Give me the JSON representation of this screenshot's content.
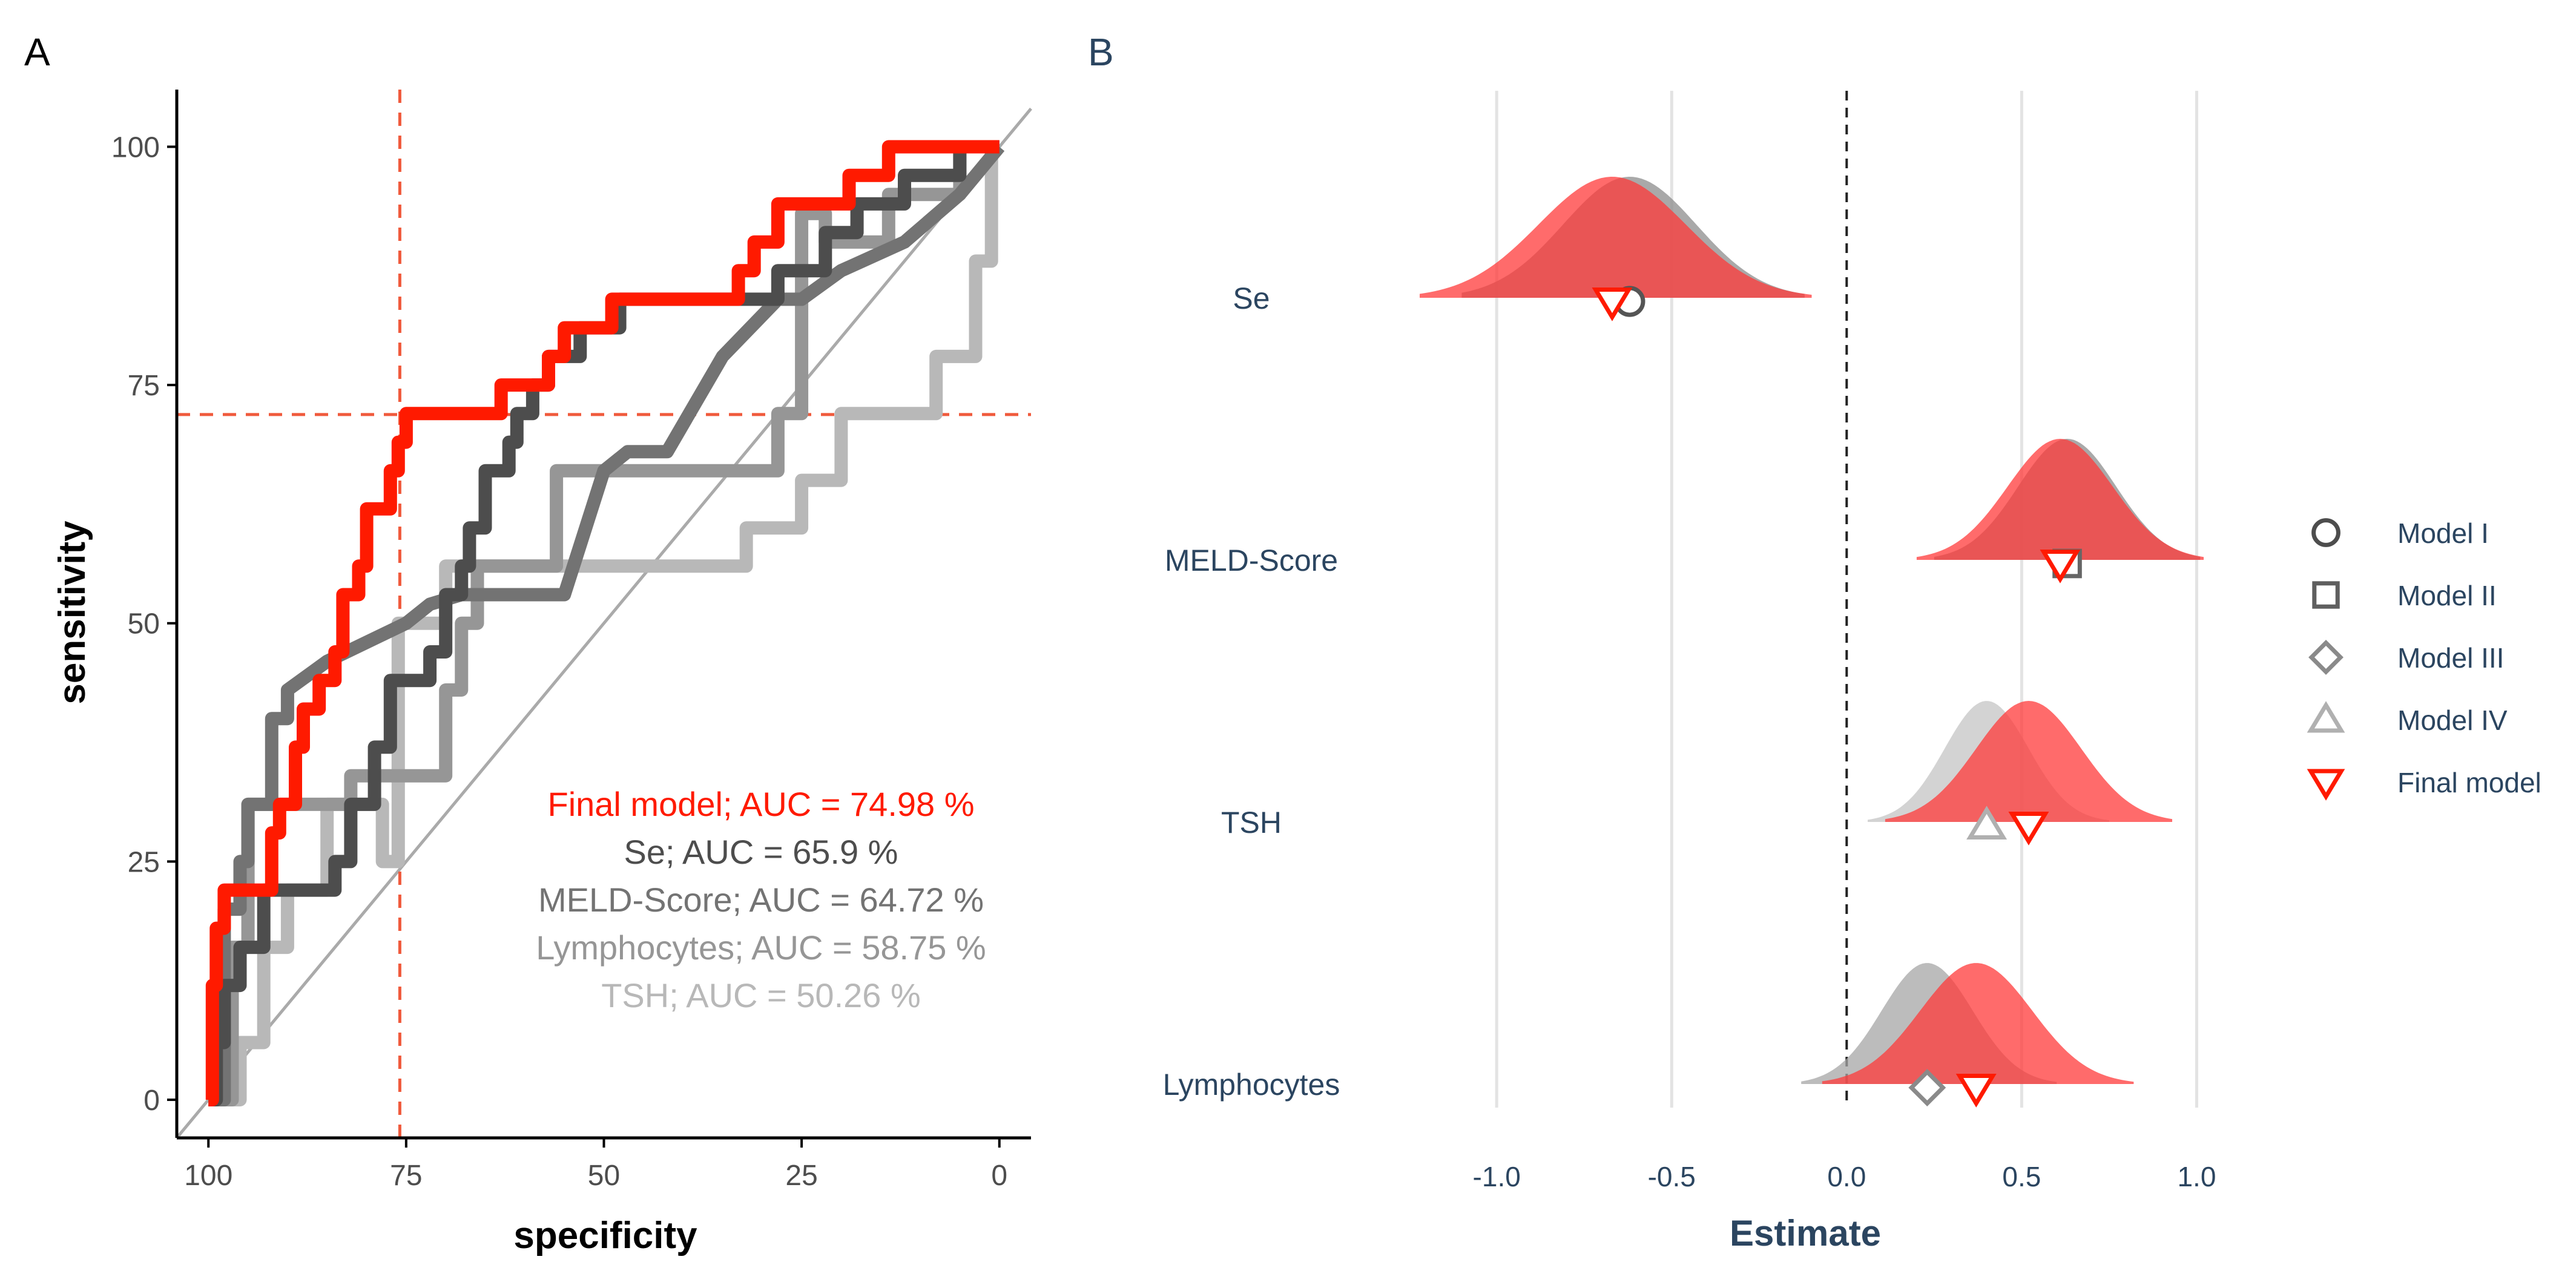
{
  "panel_labels": {
    "a": "A",
    "b": "B"
  },
  "colors": {
    "final": "#ff1a00",
    "se": "#4d4d4d",
    "meld": "#737373",
    "lymph": "#969696",
    "tsh": "#b8b8b8",
    "cutoff": "#f05a3c",
    "axis_text_b": "#2b4560",
    "grid": "#e3e3e3"
  },
  "chart_data": [
    {
      "type": "line",
      "panel": "A",
      "xlabel": "specificity",
      "ylabel": "sensitivity",
      "xlim": [
        104,
        -4
      ],
      "ylim": [
        -4,
        106
      ],
      "x_ticks": [
        "100",
        "75",
        "50",
        "25",
        "0"
      ],
      "y_ticks": [
        "0",
        "25",
        "50",
        "75",
        "100"
      ],
      "reference_line": {
        "from": [
          100,
          0
        ],
        "to": [
          0,
          100
        ]
      },
      "cutoff": {
        "specificity": 75.8,
        "sensitivity": 71.9
      },
      "legend": [
        {
          "key": "final",
          "text": "Final model; AUC = 74.98 %"
        },
        {
          "key": "se",
          "text": "Se; AUC = 65.9 %"
        },
        {
          "key": "meld",
          "text": "MELD-Score; AUC = 64.72 %"
        },
        {
          "key": "lymph",
          "text": "Lymphocytes; AUC = 58.75 %"
        },
        {
          "key": "tsh",
          "text": "TSH; AUC = 50.26 %"
        }
      ],
      "series": [
        {
          "key": "tsh",
          "name": "TSH; AUC = 50.26 %",
          "points": [
            [
              100,
              0
            ],
            [
              96,
              0
            ],
            [
              96,
              6
            ],
            [
              93,
              6
            ],
            [
              93,
              16
            ],
            [
              90,
              16
            ],
            [
              90,
              22
            ],
            [
              85,
              22
            ],
            [
              85,
              31
            ],
            [
              78,
              31
            ],
            [
              78,
              25
            ],
            [
              76,
              25
            ],
            [
              76,
              50
            ],
            [
              70,
              50
            ],
            [
              70,
              56
            ],
            [
              32,
              56
            ],
            [
              32,
              60
            ],
            [
              25,
              60
            ],
            [
              25,
              65
            ],
            [
              20,
              65
            ],
            [
              20,
              72
            ],
            [
              8,
              72
            ],
            [
              8,
              78
            ],
            [
              3,
              78
            ],
            [
              3,
              88
            ],
            [
              1,
              88
            ],
            [
              1,
              100
            ],
            [
              0,
              100
            ]
          ]
        },
        {
          "key": "lymph",
          "name": "Lymphocytes; AUC = 58.75 %",
          "points": [
            [
              100,
              0
            ],
            [
              97,
              0
            ],
            [
              97,
              16
            ],
            [
              95,
              16
            ],
            [
              95,
              31
            ],
            [
              82,
              31
            ],
            [
              82,
              34
            ],
            [
              70,
              34
            ],
            [
              70,
              43
            ],
            [
              68,
              43
            ],
            [
              68,
              50
            ],
            [
              66,
              50
            ],
            [
              66,
              56
            ],
            [
              56,
              56
            ],
            [
              56,
              66
            ],
            [
              28,
              66
            ],
            [
              28,
              72
            ],
            [
              25,
              72
            ],
            [
              25,
              93
            ],
            [
              22,
              93
            ],
            [
              22,
              90
            ],
            [
              14,
              90
            ],
            [
              14,
              95
            ],
            [
              5,
              95
            ],
            [
              5,
              100
            ],
            [
              0,
              100
            ]
          ]
        },
        {
          "key": "meld",
          "name": "MELD-Score; AUC = 64.72 %",
          "points": [
            [
              100,
              0
            ],
            [
              98,
              0
            ],
            [
              98,
              20
            ],
            [
              96,
              20
            ],
            [
              96,
              25
            ],
            [
              95,
              25
            ],
            [
              95,
              31
            ],
            [
              92,
              31
            ],
            [
              92,
              40
            ],
            [
              90,
              40
            ],
            [
              90,
              43
            ],
            [
              85,
              46
            ],
            [
              75,
              50
            ],
            [
              72,
              52
            ],
            [
              68,
              53
            ],
            [
              55,
              53
            ],
            [
              50,
              66
            ],
            [
              47,
              68
            ],
            [
              42,
              68
            ],
            [
              35,
              78
            ],
            [
              28,
              84
            ],
            [
              25,
              84
            ],
            [
              20,
              87
            ],
            [
              12,
              90
            ],
            [
              5,
              95
            ],
            [
              0,
              100
            ]
          ]
        },
        {
          "key": "se",
          "name": "Se; AUC = 65.9 %",
          "points": [
            [
              100,
              0
            ],
            [
              99,
              0
            ],
            [
              99,
              6
            ],
            [
              98,
              6
            ],
            [
              98,
              12
            ],
            [
              96,
              12
            ],
            [
              96,
              16
            ],
            [
              93,
              16
            ],
            [
              93,
              22
            ],
            [
              84,
              22
            ],
            [
              84,
              25
            ],
            [
              82,
              25
            ],
            [
              82,
              31
            ],
            [
              79,
              31
            ],
            [
              79,
              37
            ],
            [
              77,
              37
            ],
            [
              77,
              44
            ],
            [
              72,
              44
            ],
            [
              72,
              47
            ],
            [
              70,
              47
            ],
            [
              70,
              53
            ],
            [
              68,
              53
            ],
            [
              68,
              56
            ],
            [
              67,
              56
            ],
            [
              67,
              60
            ],
            [
              65,
              60
            ],
            [
              65,
              66
            ],
            [
              62,
              66
            ],
            [
              62,
              69
            ],
            [
              61,
              69
            ],
            [
              61,
              72
            ],
            [
              59,
              72
            ],
            [
              59,
              75
            ],
            [
              57,
              75
            ],
            [
              57,
              78
            ],
            [
              53,
              78
            ],
            [
              53,
              81
            ],
            [
              48,
              81
            ],
            [
              48,
              84
            ],
            [
              28,
              84
            ],
            [
              28,
              87
            ],
            [
              22,
              87
            ],
            [
              22,
              91
            ],
            [
              18,
              91
            ],
            [
              18,
              94
            ],
            [
              12,
              94
            ],
            [
              12,
              97
            ],
            [
              5,
              97
            ],
            [
              5,
              100
            ],
            [
              0,
              100
            ]
          ]
        },
        {
          "key": "final",
          "name": "Final model; AUC = 74.98 %",
          "points": [
            [
              100,
              0
            ],
            [
              99.5,
              0
            ],
            [
              99.5,
              12
            ],
            [
              99,
              12
            ],
            [
              99,
              18
            ],
            [
              98,
              18
            ],
            [
              98,
              22
            ],
            [
              92,
              22
            ],
            [
              92,
              28
            ],
            [
              91,
              28
            ],
            [
              91,
              31
            ],
            [
              89,
              31
            ],
            [
              89,
              37
            ],
            [
              88,
              37
            ],
            [
              88,
              41
            ],
            [
              86,
              41
            ],
            [
              86,
              44
            ],
            [
              84,
              44
            ],
            [
              84,
              47
            ],
            [
              83,
              47
            ],
            [
              83,
              53
            ],
            [
              81,
              53
            ],
            [
              81,
              56
            ],
            [
              80,
              56
            ],
            [
              80,
              62
            ],
            [
              77,
              62
            ],
            [
              77,
              66
            ],
            [
              76,
              66
            ],
            [
              76,
              69
            ],
            [
              75,
              69
            ],
            [
              75,
              72
            ],
            [
              63,
              72
            ],
            [
              63,
              75
            ],
            [
              57,
              75
            ],
            [
              57,
              78
            ],
            [
              55,
              78
            ],
            [
              55,
              81
            ],
            [
              49,
              81
            ],
            [
              49,
              84
            ],
            [
              33,
              84
            ],
            [
              33,
              87
            ],
            [
              31,
              87
            ],
            [
              31,
              90
            ],
            [
              28,
              90
            ],
            [
              28,
              94
            ],
            [
              19,
              94
            ],
            [
              19,
              97
            ],
            [
              14,
              97
            ],
            [
              14,
              100
            ],
            [
              0,
              100
            ]
          ]
        }
      ]
    },
    {
      "type": "ridgeline",
      "panel": "B",
      "xlabel": "Estimate",
      "ylabel": "",
      "xlim": [
        -1.22,
        1.02
      ],
      "x_ticks": [
        "-1.0",
        "-0.5",
        "0.0",
        "0.5",
        "1.0"
      ],
      "x_tick_values": [
        -1.0,
        -0.5,
        0.0,
        0.5,
        1.0
      ],
      "zero_line": 0.0,
      "categories": [
        "Se",
        "MELD-Score",
        "TSH",
        "Lymphocytes"
      ],
      "series": [
        {
          "category": "Se",
          "model": "Model I",
          "shape": "circle",
          "estimate": -0.62,
          "sd": 0.19,
          "range": [
            -1.1,
            -0.12
          ],
          "color": "#8c8c8c"
        },
        {
          "category": "Se",
          "model": "Final model",
          "shape": "triangle-down",
          "estimate": -0.67,
          "sd": 0.21,
          "range": [
            -1.22,
            -0.1
          ],
          "color": "#ff3a3a"
        },
        {
          "category": "MELD-Score",
          "model": "Model II",
          "shape": "square",
          "estimate": 0.63,
          "sd": 0.14,
          "range": [
            0.25,
            1.01
          ],
          "color": "#8c8c8c"
        },
        {
          "category": "MELD-Score",
          "model": "Final model",
          "shape": "triangle-down",
          "estimate": 0.61,
          "sd": 0.15,
          "range": [
            0.2,
            1.02
          ],
          "color": "#ff3a3a"
        },
        {
          "category": "TSH",
          "model": "Model IV",
          "shape": "triangle-up",
          "estimate": 0.4,
          "sd": 0.12,
          "range": [
            0.06,
            0.75
          ],
          "color": "#c4c4c4"
        },
        {
          "category": "TSH",
          "model": "Final model",
          "shape": "triangle-down",
          "estimate": 0.52,
          "sd": 0.15,
          "range": [
            0.11,
            0.93
          ],
          "color": "#ff3a3a"
        },
        {
          "category": "Lymphocytes",
          "model": "Model III",
          "shape": "diamond",
          "estimate": 0.23,
          "sd": 0.13,
          "range": [
            -0.13,
            0.6
          ],
          "color": "#a6a6a6"
        },
        {
          "category": "Lymphocytes",
          "model": "Final model",
          "shape": "triangle-down",
          "estimate": 0.37,
          "sd": 0.16,
          "range": [
            -0.07,
            0.82
          ],
          "color": "#ff3a3a"
        }
      ],
      "legend": [
        {
          "label": "Model I",
          "shape": "circle",
          "color": "#4d4d4d"
        },
        {
          "label": "Model II",
          "shape": "square",
          "color": "#5f5f5f"
        },
        {
          "label": "Model III",
          "shape": "diamond",
          "color": "#8a8a8a"
        },
        {
          "label": "Model IV",
          "shape": "triangle-up",
          "color": "#b0b0b0"
        },
        {
          "label": "Final model",
          "shape": "triangle-down",
          "color": "#ff1a00"
        }
      ]
    }
  ]
}
